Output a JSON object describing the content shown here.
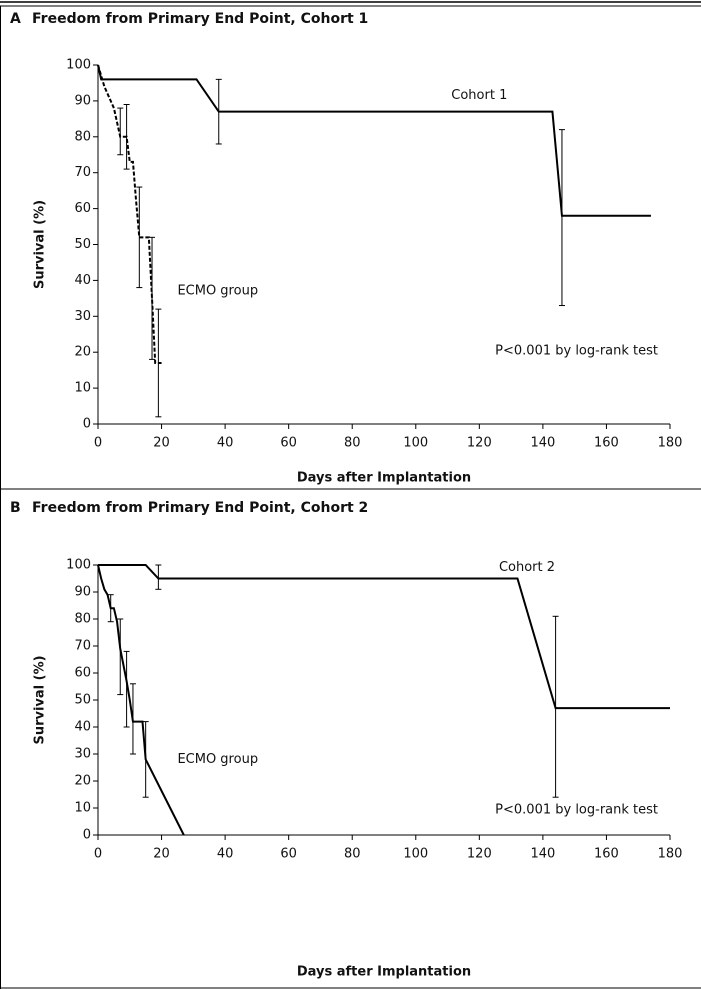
{
  "chart_data": [
    {
      "type": "line",
      "panel_label": "A",
      "title": "Freedom from Primary End Point, Cohort 1",
      "x_label": "Days after Implantation",
      "y_label": "Survival (%)",
      "xlim": [
        0,
        180
      ],
      "ylim": [
        0,
        100
      ],
      "xticks": [
        0,
        20,
        40,
        60,
        80,
        100,
        120,
        140,
        160,
        180
      ],
      "yticks": [
        0,
        10,
        20,
        30,
        40,
        50,
        60,
        70,
        80,
        90,
        100
      ],
      "annotations": [
        "P<0.001 by log-rank test"
      ],
      "series": [
        {
          "name": "Cohort 1",
          "color": "#000000",
          "dash": false,
          "x": [
            0,
            1,
            31,
            38,
            143,
            146,
            174
          ],
          "values": [
            100,
            96,
            96,
            87,
            87,
            58,
            58
          ],
          "error_bars": [
            {
              "x": 38,
              "low": 78,
              "high": 96
            },
            {
              "x": 146,
              "low": 33,
              "high": 82
            }
          ]
        },
        {
          "name": "ECMO group",
          "color": "#000000",
          "dash": true,
          "x": [
            0,
            1,
            2,
            3,
            4,
            5,
            6,
            7,
            9,
            10,
            11,
            12,
            13,
            15,
            16,
            17,
            18,
            20
          ],
          "values": [
            100,
            97,
            94,
            92,
            90,
            88,
            84,
            80,
            80,
            73,
            73,
            62,
            52,
            52,
            52,
            35,
            17,
            17
          ],
          "error_bars": [
            {
              "x": 7,
              "low": 75,
              "high": 88
            },
            {
              "x": 9,
              "low": 71,
              "high": 89
            },
            {
              "x": 13,
              "low": 38,
              "high": 66
            },
            {
              "x": 17,
              "low": 18,
              "high": 52
            },
            {
              "x": 19,
              "low": 2,
              "high": 32
            }
          ]
        }
      ]
    },
    {
      "type": "line",
      "panel_label": "B",
      "title": "Freedom from Primary End Point, Cohort 2",
      "x_label": "Days after Implantation",
      "y_label": "Survival (%)",
      "xlim": [
        0,
        180
      ],
      "ylim": [
        0,
        100
      ],
      "xticks": [
        0,
        20,
        40,
        60,
        80,
        100,
        120,
        140,
        160,
        180
      ],
      "yticks": [
        0,
        10,
        20,
        30,
        40,
        50,
        60,
        70,
        80,
        90,
        100
      ],
      "annotations": [
        "P<0.001 by log-rank test"
      ],
      "series": [
        {
          "name": "Cohort 2",
          "color": "#000000",
          "dash": false,
          "x": [
            0,
            15,
            19,
            132,
            144,
            180
          ],
          "values": [
            100,
            100,
            95,
            95,
            47,
            47
          ],
          "error_bars": [
            {
              "x": 19,
              "low": 91,
              "high": 100
            },
            {
              "x": 144,
              "low": 14,
              "high": 81
            }
          ]
        },
        {
          "name": "ECMO group",
          "color": "#000000",
          "dash": false,
          "x": [
            0,
            1,
            2,
            3,
            4,
            5,
            6,
            7,
            8,
            9,
            10,
            11,
            14,
            15,
            27
          ],
          "values": [
            100,
            95,
            91,
            89,
            84,
            84,
            79,
            69,
            63,
            57,
            50,
            42,
            42,
            28,
            0
          ],
          "error_bars": [
            {
              "x": 4,
              "low": 79,
              "high": 89
            },
            {
              "x": 7,
              "low": 52,
              "high": 80
            },
            {
              "x": 9,
              "low": 40,
              "high": 68
            },
            {
              "x": 11,
              "low": 30,
              "high": 56
            },
            {
              "x": 15,
              "low": 14,
              "high": 42
            }
          ]
        }
      ]
    }
  ]
}
